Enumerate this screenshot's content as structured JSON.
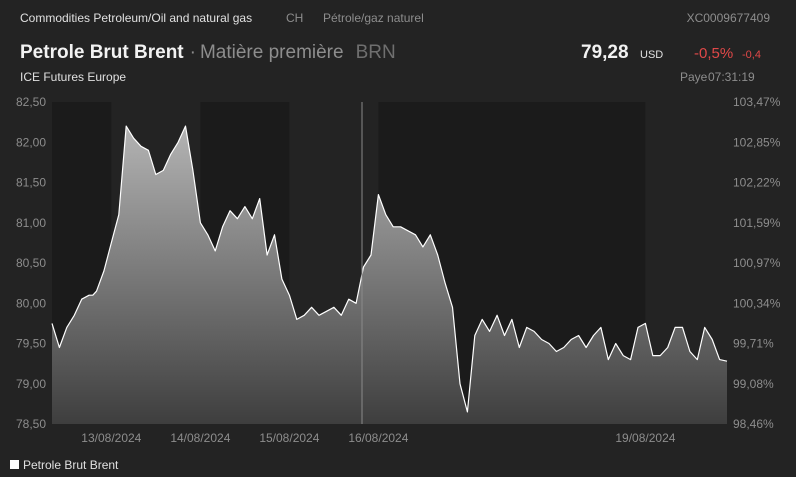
{
  "header": {
    "breadcrumb": "Commodities Petroleum/Oil and natural gas",
    "country_code": "CH",
    "category_fr": "Pétrole/gaz naturel",
    "isin": "XC0009677409",
    "title": "Petrole Brut Brent",
    "separator": "·",
    "type": "Matière première",
    "symbol": "BRN",
    "exchange": "ICE Futures Europe",
    "price": "79,28",
    "currency": "USD",
    "change_pct": "-0,5%",
    "change_abs": "-0,4",
    "country_name": "Paye",
    "time": "07:31:19"
  },
  "colors": {
    "background": "#232323",
    "night_band": "#1b1b1b",
    "line": "#ffffff",
    "negative": "#e04848",
    "axis_text": "#8d8d8d"
  },
  "chart_data": {
    "type": "area",
    "series": [
      {
        "name": "Petrole Brut Brent",
        "x": [
          "12/08/2024 08:00",
          "12/08/2024 10:00",
          "12/08/2024 12:00",
          "12/08/2024 14:00",
          "12/08/2024 16:00",
          "12/08/2024 18:00",
          "12/08/2024 19:00",
          "12/08/2024 20:00",
          "12/08/2024 22:00",
          "13/08/2024 00:00",
          "13/08/2024 02:00",
          "13/08/2024 04:00",
          "13/08/2024 06:00",
          "13/08/2024 08:00",
          "13/08/2024 10:00",
          "13/08/2024 12:00",
          "13/08/2024 14:00",
          "13/08/2024 16:00",
          "13/08/2024 18:00",
          "13/08/2024 20:00",
          "13/08/2024 22:00",
          "14/08/2024 00:00",
          "14/08/2024 02:00",
          "14/08/2024 04:00",
          "14/08/2024 06:00",
          "14/08/2024 08:00",
          "14/08/2024 10:00",
          "14/08/2024 12:00",
          "14/08/2024 14:00",
          "14/08/2024 16:00",
          "14/08/2024 18:00",
          "14/08/2024 20:00",
          "14/08/2024 22:00",
          "15/08/2024 00:00",
          "15/08/2024 02:00",
          "15/08/2024 04:00",
          "15/08/2024 06:00",
          "15/08/2024 08:00",
          "15/08/2024 10:00",
          "15/08/2024 12:00",
          "15/08/2024 14:00",
          "15/08/2024 16:00",
          "15/08/2024 18:00",
          "15/08/2024 20:00",
          "15/08/2024 22:00",
          "16/08/2024 00:00",
          "16/08/2024 02:00",
          "16/08/2024 04:00",
          "16/08/2024 06:00",
          "16/08/2024 08:00",
          "16/08/2024 10:00",
          "16/08/2024 12:00",
          "16/08/2024 14:00",
          "16/08/2024 16:00",
          "16/08/2024 18:00",
          "16/08/2024 20:00",
          "16/08/2024 22:00",
          "17/08/2024 00:00",
          "17/08/2024 02:00",
          "17/08/2024 04:00",
          "17/08/2024 06:00",
          "17/08/2024 08:00",
          "17/08/2024 10:00",
          "17/08/2024 12:00",
          "17/08/2024 14:00",
          "17/08/2024 16:00",
          "17/08/2024 18:00",
          "17/08/2024 20:00",
          "17/08/2024 22:00",
          "18/08/2024 00:00",
          "18/08/2024 02:00",
          "18/08/2024 04:00",
          "18/08/2024 06:00",
          "18/08/2024 08:00",
          "18/08/2024 10:00",
          "18/08/2024 12:00",
          "18/08/2024 14:00",
          "18/08/2024 16:00",
          "18/08/2024 18:00",
          "18/08/2024 20:00",
          "18/08/2024 22:00",
          "19/08/2024 00:00",
          "19/08/2024 02:00",
          "19/08/2024 04:00",
          "19/08/2024 06:00",
          "19/08/2024 08:00",
          "19/08/2024 10:00",
          "19/08/2024 12:00",
          "19/08/2024 14:00",
          "19/08/2024 16:00",
          "19/08/2024 18:00",
          "19/08/2024 20:00",
          "19/08/2024 22:00"
        ],
        "y": [
          79.75,
          79.45,
          79.7,
          79.85,
          80.05,
          80.1,
          80.1,
          80.15,
          80.4,
          80.75,
          81.1,
          82.2,
          82.05,
          81.95,
          81.9,
          81.6,
          81.65,
          81.85,
          82.0,
          82.2,
          81.65,
          81.0,
          80.85,
          80.65,
          80.95,
          81.15,
          81.05,
          81.2,
          81.05,
          81.3,
          80.6,
          80.85,
          80.3,
          80.1,
          79.8,
          79.85,
          79.95,
          79.85,
          79.9,
          79.95,
          79.85,
          80.05,
          80.0,
          80.45,
          80.6,
          81.35,
          81.1,
          80.95,
          80.95,
          80.9,
          80.85,
          80.7,
          80.85,
          80.6,
          80.25,
          79.95,
          79.0,
          78.65,
          79.6,
          79.8,
          79.65,
          79.85,
          79.6,
          79.8,
          79.45,
          79.7,
          79.65,
          79.55,
          79.5,
          79.4,
          79.45,
          79.55,
          79.6,
          79.45,
          79.6,
          79.7,
          79.3,
          79.5,
          79.35,
          79.3,
          79.7,
          79.75,
          79.35,
          79.35,
          79.45,
          79.7,
          79.7,
          79.4,
          79.3,
          79.7,
          79.55,
          79.3,
          79.28
        ]
      }
    ],
    "yticks_left": [
      "82,50",
      "82,00",
      "81,50",
      "81,00",
      "80,50",
      "80,00",
      "79,50",
      "79,00",
      "78,50"
    ],
    "yticks_right": [
      "103,47%",
      "102,85%",
      "102,22%",
      "101,59%",
      "100,97%",
      "100,34%",
      "99,71%",
      "99,08%",
      "98,46%"
    ],
    "xticks": [
      "13/08/2024",
      "14/08/2024",
      "15/08/2024",
      "16/08/2024",
      "19/08/2024"
    ],
    "ylim": [
      78.5,
      82.5
    ],
    "grid": false,
    "shaded_sessions": true,
    "legend": "bottom-left"
  }
}
